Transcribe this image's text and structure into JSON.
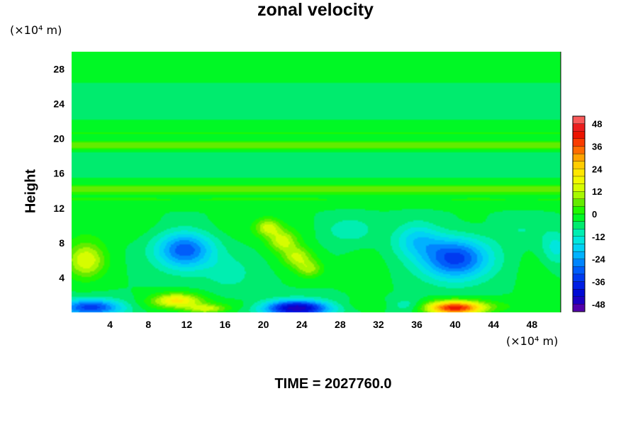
{
  "chart_data": {
    "type": "heatmap",
    "title": "zonal velocity",
    "xlabel": "",
    "ylabel": "Height",
    "x_unit": "(×10⁴ m)",
    "y_unit": "(×10⁴ m)",
    "xlim": [
      0,
      51
    ],
    "ylim": [
      0,
      30
    ],
    "x_ticks": [
      "4",
      "8",
      "12",
      "16",
      "20",
      "24",
      "28",
      "32",
      "36",
      "40",
      "44",
      "48"
    ],
    "y_ticks": [
      "4",
      "8",
      "12",
      "16",
      "20",
      "24",
      "28"
    ],
    "colorbar": {
      "min": -52,
      "max": 52,
      "step": 4,
      "tick_labels": [
        "48",
        "36",
        "24",
        "12",
        "0",
        "-12",
        "-24",
        "-36",
        "-48"
      ]
    },
    "background_value": -4,
    "horizontal_bands": [
      {
        "y": 0.8,
        "width": 0.7,
        "amp": 3
      },
      {
        "y": 9.5,
        "width": 1.5,
        "amp": 2
      },
      {
        "y": 13.0,
        "width": 0.8,
        "amp": 4
      },
      {
        "y": 14.2,
        "width": 0.5,
        "amp": 10
      },
      {
        "y": 17.5,
        "width": 1.0,
        "amp": -2
      },
      {
        "y": 19.2,
        "width": 0.5,
        "amp": 12
      },
      {
        "y": 20.6,
        "width": 0.4,
        "amp": 4
      },
      {
        "y": 21.5,
        "width": 0.4,
        "amp": 3
      },
      {
        "y": 22.8,
        "width": 0.6,
        "amp": -1
      }
    ],
    "features": [
      {
        "name": "low-left",
        "x": 2.0,
        "y": 0.6,
        "value": -33,
        "sx": 3.5,
        "sy": 0.9
      },
      {
        "name": "left-mid",
        "x": 1.5,
        "y": 6.0,
        "value": 20,
        "sx": 2.0,
        "sy": 2.0
      },
      {
        "name": "low-10",
        "x": 11.0,
        "y": 1.4,
        "value": 24,
        "sx": 2.5,
        "sy": 0.8
      },
      {
        "name": "low-14",
        "x": 14.0,
        "y": 0.4,
        "value": 16,
        "sx": 2.0,
        "sy": 0.5
      },
      {
        "name": "cold-11",
        "x": 11.8,
        "y": 7.2,
        "value": -27,
        "sx": 3.0,
        "sy": 2.2
      },
      {
        "name": "diag-1",
        "x": 20.5,
        "y": 9.8,
        "value": 16,
        "sx": 1.3,
        "sy": 1.0
      },
      {
        "name": "diag-2",
        "x": 22.0,
        "y": 8.2,
        "value": 17,
        "sx": 1.5,
        "sy": 1.2
      },
      {
        "name": "diag-3",
        "x": 23.5,
        "y": 6.4,
        "value": 16,
        "sx": 1.6,
        "sy": 1.2
      },
      {
        "name": "diag-4",
        "x": 24.8,
        "y": 5.0,
        "value": 13,
        "sx": 1.4,
        "sy": 1.0
      },
      {
        "name": "low-23",
        "x": 23.5,
        "y": 0.5,
        "value": -46,
        "sx": 3.5,
        "sy": 0.9
      },
      {
        "name": "cold-17",
        "x": 16.5,
        "y": 4.5,
        "value": -6,
        "sx": 2.5,
        "sy": 2.0
      },
      {
        "name": "cold-39",
        "x": 40.0,
        "y": 6.2,
        "value": -30,
        "sx": 3.6,
        "sy": 2.4
      },
      {
        "name": "cold-37",
        "x": 36.0,
        "y": 8.5,
        "value": -14,
        "sx": 2.5,
        "sy": 2.0
      },
      {
        "name": "hot-40",
        "x": 40.0,
        "y": 0.5,
        "value": 44,
        "sx": 3.0,
        "sy": 0.8
      },
      {
        "name": "low-36",
        "x": 35.0,
        "y": 0.8,
        "value": -10,
        "sx": 2.0,
        "sy": 0.8
      },
      {
        "name": "low-31",
        "x": 31.0,
        "y": 5.0,
        "value": 2,
        "sx": 2.0,
        "sy": 2.5
      },
      {
        "name": "mid-30",
        "x": 29.0,
        "y": 9.5,
        "value": -9,
        "sx": 3.0,
        "sy": 1.5
      },
      {
        "name": "right-mid",
        "x": 48.5,
        "y": 5.0,
        "value": 2,
        "sx": 2.0,
        "sy": 2.5
      },
      {
        "name": "right-edge",
        "x": 50.5,
        "y": 7.5,
        "value": -10,
        "sx": 1.5,
        "sy": 2.0
      },
      {
        "name": "right-top",
        "x": 47.0,
        "y": 9.5,
        "value": -6,
        "sx": 3.0,
        "sy": 1.5
      }
    ]
  },
  "footer": {
    "time_label": "TIME = 2027760.0"
  }
}
